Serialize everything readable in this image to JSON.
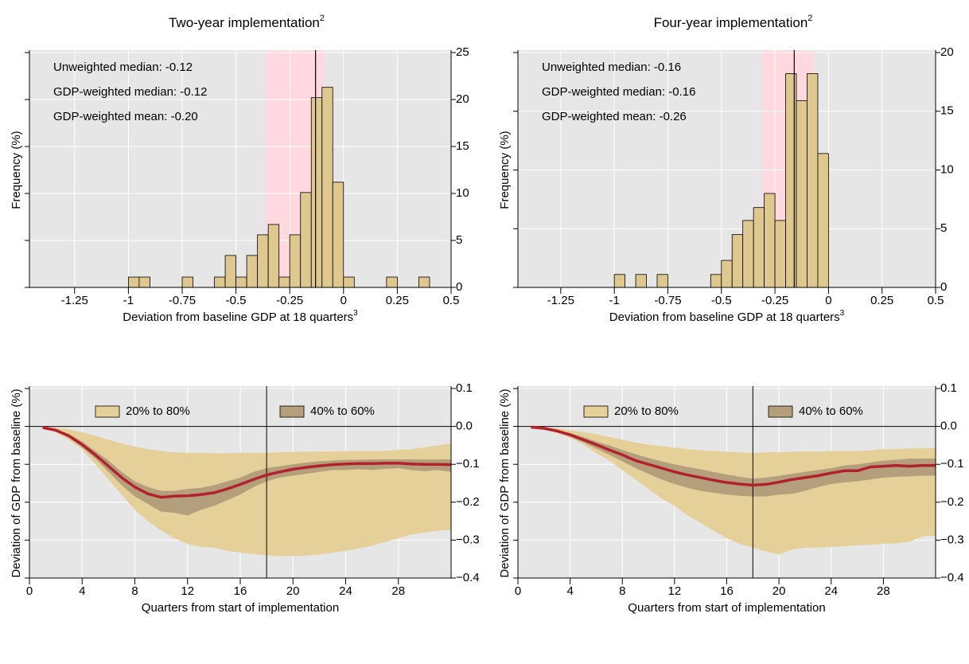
{
  "chart_data": [
    {
      "type": "histogram",
      "title": "Two-year implementation",
      "title_sup": "2",
      "x_label": "Deviation from baseline GDP at 18 quarters",
      "x_label_sup": "3",
      "y_label": "Frequency (%)",
      "annotations": [
        "Unweighted median: -0.12",
        "GDP-weighted median: -0.12",
        "GDP-weighted mean: -0.20"
      ],
      "bins": [
        -1,
        -0.95,
        -0.9,
        -0.85,
        -0.8,
        -0.75,
        -0.7,
        -0.65,
        -0.6,
        -0.55,
        -0.5,
        -0.45,
        -0.4,
        -0.35,
        -0.3,
        -0.25,
        -0.2,
        -0.15,
        -0.1,
        -0.05,
        0,
        0.05,
        0.1,
        0.15,
        0.2,
        0.25,
        0.3,
        0.35,
        0.4
      ],
      "values": [
        1.1,
        1.1,
        0,
        0,
        0,
        1.1,
        0,
        0,
        1.1,
        3.4,
        1.1,
        3.4,
        5.6,
        6.7,
        1.1,
        5.6,
        10.1,
        20.2,
        21.3,
        11.2,
        1.1,
        0,
        0,
        0,
        1.1,
        0,
        0,
        1.1
      ],
      "color": "#dfc88f",
      "highlight": [
        -0.36,
        -0.09
      ],
      "highlight_color": "#ffd9df",
      "vline": -0.13,
      "xlim": [
        -1.46,
        0.5
      ],
      "xticks": [
        -1.25,
        -1,
        -0.75,
        -0.5,
        -0.25,
        0,
        0.25,
        0.5
      ],
      "ylim": [
        0,
        25
      ],
      "yticks": [
        0,
        5,
        10,
        15,
        20,
        25
      ],
      "grid": true
    },
    {
      "type": "histogram",
      "title": "Four-year implementation",
      "title_sup": "2",
      "x_label": "Deviation from baseline GDP at 18 quarters",
      "x_label_sup": "3",
      "y_label": "Frequency (%)",
      "annotations": [
        "Unweighted median: -0.16",
        "GDP-weighted median: -0.16",
        "GDP-weighted mean: -0.26"
      ],
      "bins": [
        -1,
        -0.95,
        -0.9,
        -0.85,
        -0.8,
        -0.75,
        -0.7,
        -0.65,
        -0.6,
        -0.55,
        -0.5,
        -0.45,
        -0.4,
        -0.35,
        -0.3,
        -0.25,
        -0.2,
        -0.15,
        -0.1,
        -0.05,
        0,
        0.05,
        0.1,
        0.15,
        0.2,
        0.25,
        0.3,
        0.35,
        0.4
      ],
      "values": [
        1.1,
        0,
        1.1,
        0,
        1.1,
        0,
        0,
        0,
        0,
        1.1,
        2.3,
        4.5,
        5.7,
        6.8,
        8.0,
        5.7,
        18.2,
        15.9,
        18.2,
        11.4,
        0,
        0,
        0,
        0,
        0,
        0,
        0,
        0
      ],
      "color": "#dfc88f",
      "highlight": [
        -0.31,
        -0.07
      ],
      "highlight_color": "#ffd9df",
      "vline": -0.16,
      "xlim": [
        -1.45,
        0.5
      ],
      "xticks": [
        -1.25,
        -1,
        -0.75,
        -0.5,
        -0.25,
        0,
        0.25,
        0.5
      ],
      "ylim": [
        0,
        20
      ],
      "yticks": [
        0,
        5,
        10,
        15,
        20
      ],
      "grid": true
    },
    {
      "type": "band",
      "x_label": "Quarters from start of implementation",
      "y_label": "Deviation of GDP from baseline (%)",
      "x": [
        1,
        2,
        3,
        4,
        5,
        6,
        7,
        8,
        9,
        10,
        11,
        12,
        13,
        14,
        15,
        16,
        17,
        18,
        19,
        20,
        21,
        22,
        23,
        24,
        25,
        26,
        27,
        28,
        29,
        30,
        31,
        32
      ],
      "bands": [
        {
          "name": "20% to 80%",
          "color": "#e6d09a",
          "lower": [
            -0.003,
            -0.015,
            -0.035,
            -0.06,
            -0.1,
            -0.14,
            -0.18,
            -0.22,
            -0.25,
            -0.275,
            -0.295,
            -0.31,
            -0.318,
            -0.32,
            -0.328,
            -0.333,
            -0.337,
            -0.34,
            -0.342,
            -0.342,
            -0.341,
            -0.338,
            -0.333,
            -0.328,
            -0.322,
            -0.315,
            -0.305,
            -0.295,
            -0.285,
            -0.28,
            -0.275,
            -0.273
          ],
          "upper": [
            0,
            -0.003,
            -0.008,
            -0.015,
            -0.025,
            -0.035,
            -0.045,
            -0.053,
            -0.06,
            -0.065,
            -0.068,
            -0.07,
            -0.07,
            -0.071,
            -0.071,
            -0.07,
            -0.07,
            -0.07,
            -0.068,
            -0.067,
            -0.067,
            -0.066,
            -0.066,
            -0.065,
            -0.065,
            -0.065,
            -0.064,
            -0.062,
            -0.06,
            -0.055,
            -0.05,
            -0.045
          ]
        },
        {
          "name": "40% to 60%",
          "color": "#b49f7c",
          "lower": [
            -0.003,
            -0.012,
            -0.03,
            -0.055,
            -0.085,
            -0.12,
            -0.155,
            -0.185,
            -0.205,
            -0.225,
            -0.228,
            -0.235,
            -0.22,
            -0.21,
            -0.195,
            -0.18,
            -0.16,
            -0.145,
            -0.135,
            -0.13,
            -0.125,
            -0.12,
            -0.115,
            -0.115,
            -0.113,
            -0.115,
            -0.112,
            -0.11,
            -0.115,
            -0.118,
            -0.115,
            -0.12
          ],
          "upper": [
            -0.002,
            -0.008,
            -0.02,
            -0.04,
            -0.065,
            -0.09,
            -0.12,
            -0.145,
            -0.16,
            -0.17,
            -0.17,
            -0.165,
            -0.162,
            -0.155,
            -0.145,
            -0.135,
            -0.12,
            -0.11,
            -0.105,
            -0.1,
            -0.095,
            -0.092,
            -0.09,
            -0.088,
            -0.088,
            -0.087,
            -0.087,
            -0.087,
            -0.087,
            -0.087,
            -0.087,
            -0.087
          ]
        }
      ],
      "line": {
        "color": "#b3212c",
        "values": [
          -0.003,
          -0.01,
          -0.025,
          -0.048,
          -0.075,
          -0.105,
          -0.135,
          -0.16,
          -0.178,
          -0.187,
          -0.184,
          -0.183,
          -0.18,
          -0.175,
          -0.165,
          -0.153,
          -0.14,
          -0.128,
          -0.12,
          -0.113,
          -0.108,
          -0.104,
          -0.101,
          -0.099,
          -0.098,
          -0.098,
          -0.097,
          -0.097,
          -0.099,
          -0.1,
          -0.1,
          -0.101
        ]
      },
      "vline": 18,
      "hline": 0,
      "xlim": [
        0,
        32
      ],
      "xticks": [
        0,
        4,
        8,
        12,
        16,
        20,
        24,
        28
      ],
      "ylim": [
        -0.4,
        0.1
      ],
      "yticks": [
        0.1,
        {
          "value": 0,
          "label": "0.0"
        },
        {
          "value": -0.1,
          "label": "−0.1"
        },
        {
          "value": -0.2,
          "label": "−0.2"
        },
        {
          "value": -0.3,
          "label": "−0.3"
        },
        {
          "value": -0.4,
          "label": "−0.4"
        }
      ],
      "grid": true
    },
    {
      "type": "band",
      "x_label": "Quarters from start of implementation",
      "y_label": "Deviation of GDP from baseline (%)",
      "x": [
        1,
        2,
        3,
        4,
        5,
        6,
        7,
        8,
        9,
        10,
        11,
        12,
        13,
        14,
        15,
        16,
        17,
        18,
        19,
        20,
        21,
        22,
        23,
        24,
        25,
        26,
        27,
        28,
        29,
        30,
        31,
        32
      ],
      "bands": [
        {
          "name": "20% to 80%",
          "color": "#e6d09a",
          "lower": [
            -0.002,
            -0.008,
            -0.018,
            -0.03,
            -0.048,
            -0.07,
            -0.09,
            -0.115,
            -0.14,
            -0.165,
            -0.19,
            -0.21,
            -0.235,
            -0.255,
            -0.275,
            -0.295,
            -0.31,
            -0.32,
            -0.33,
            -0.338,
            -0.325,
            -0.32,
            -0.32,
            -0.318,
            -0.316,
            -0.314,
            -0.312,
            -0.31,
            -0.308,
            -0.305,
            -0.29,
            -0.288
          ],
          "upper": [
            0,
            -0.002,
            -0.005,
            -0.01,
            -0.015,
            -0.02,
            -0.028,
            -0.035,
            -0.042,
            -0.048,
            -0.052,
            -0.056,
            -0.06,
            -0.063,
            -0.065,
            -0.067,
            -0.068,
            -0.07,
            -0.068,
            -0.068,
            -0.067,
            -0.066,
            -0.067,
            -0.065,
            -0.065,
            -0.065,
            -0.063,
            -0.06,
            -0.06,
            -0.058,
            -0.057,
            -0.057
          ]
        },
        {
          "name": "40% to 60%",
          "color": "#b49f7c",
          "lower": [
            -0.002,
            -0.006,
            -0.015,
            -0.027,
            -0.042,
            -0.058,
            -0.075,
            -0.092,
            -0.11,
            -0.125,
            -0.14,
            -0.152,
            -0.162,
            -0.17,
            -0.175,
            -0.18,
            -0.183,
            -0.185,
            -0.185,
            -0.18,
            -0.178,
            -0.17,
            -0.16,
            -0.152,
            -0.148,
            -0.145,
            -0.14,
            -0.135,
            -0.133,
            -0.132,
            -0.13,
            -0.13
          ],
          "upper": [
            -0.001,
            -0.004,
            -0.01,
            -0.018,
            -0.028,
            -0.04,
            -0.05,
            -0.062,
            -0.073,
            -0.083,
            -0.092,
            -0.1,
            -0.107,
            -0.113,
            -0.12,
            -0.127,
            -0.133,
            -0.138,
            -0.135,
            -0.13,
            -0.125,
            -0.12,
            -0.115,
            -0.11,
            -0.103,
            -0.1,
            -0.095,
            -0.09,
            -0.088,
            -0.085,
            -0.085,
            -0.085
          ]
        }
      ],
      "line": {
        "color": "#b3212c",
        "values": [
          -0.002,
          -0.005,
          -0.012,
          -0.022,
          -0.035,
          -0.048,
          -0.062,
          -0.075,
          -0.09,
          -0.1,
          -0.11,
          -0.12,
          -0.128,
          -0.135,
          -0.142,
          -0.148,
          -0.152,
          -0.155,
          -0.153,
          -0.147,
          -0.14,
          -0.135,
          -0.13,
          -0.123,
          -0.117,
          -0.117,
          -0.107,
          -0.105,
          -0.103,
          -0.105,
          -0.103,
          -0.103
        ]
      },
      "vline": 18,
      "hline": 0,
      "xlim": [
        0,
        32
      ],
      "xticks": [
        0,
        4,
        8,
        12,
        16,
        20,
        24,
        28
      ],
      "ylim": [
        -0.4,
        0.1
      ],
      "yticks": [
        0.1,
        {
          "value": 0,
          "label": "0.0"
        },
        {
          "value": -0.1,
          "label": "−0.1"
        },
        {
          "value": -0.2,
          "label": "−0.2"
        },
        {
          "value": -0.3,
          "label": "−0.3"
        },
        {
          "value": -0.4,
          "label": "−0.4"
        }
      ],
      "grid": true
    }
  ]
}
